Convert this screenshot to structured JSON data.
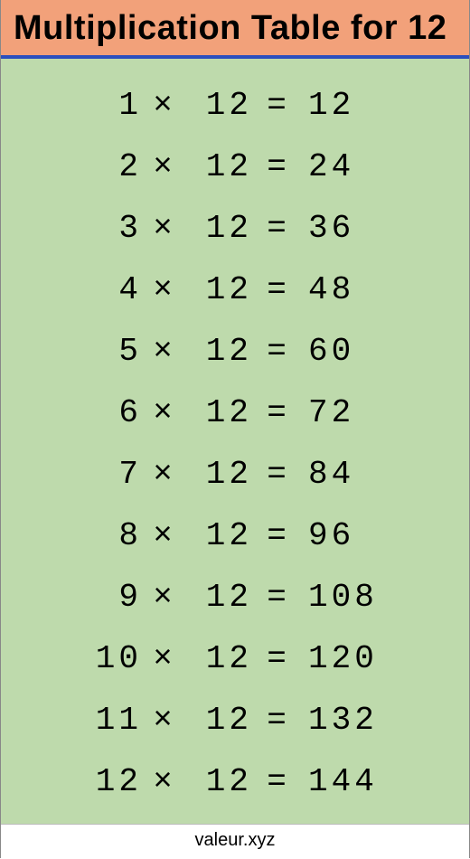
{
  "title": "Multiplication Table for 12",
  "colors": {
    "header_bg": "#f2a17a",
    "header_text": "#000000",
    "header_border": "#2b4fbe",
    "body_bg": "#bedaac",
    "body_text": "#000000",
    "footer_text": "#000000"
  },
  "typography": {
    "title_fontsize": 38,
    "row_fontsize": 36,
    "footer_fontsize": 20,
    "mono_family": "Courier New"
  },
  "table": {
    "type": "table",
    "multiplicand": 12,
    "times_symbol": "×",
    "equals_symbol": "=",
    "rows": [
      {
        "a": 1,
        "b": 12,
        "r": 12
      },
      {
        "a": 2,
        "b": 12,
        "r": 24
      },
      {
        "a": 3,
        "b": 12,
        "r": 36
      },
      {
        "a": 4,
        "b": 12,
        "r": 48
      },
      {
        "a": 5,
        "b": 12,
        "r": 60
      },
      {
        "a": 6,
        "b": 12,
        "r": 72
      },
      {
        "a": 7,
        "b": 12,
        "r": 84
      },
      {
        "a": 8,
        "b": 12,
        "r": 96
      },
      {
        "a": 9,
        "b": 12,
        "r": 108
      },
      {
        "a": 10,
        "b": 12,
        "r": 120
      },
      {
        "a": 11,
        "b": 12,
        "r": 132
      },
      {
        "a": 12,
        "b": 12,
        "r": 144
      }
    ]
  },
  "footer": "valeur.xyz"
}
